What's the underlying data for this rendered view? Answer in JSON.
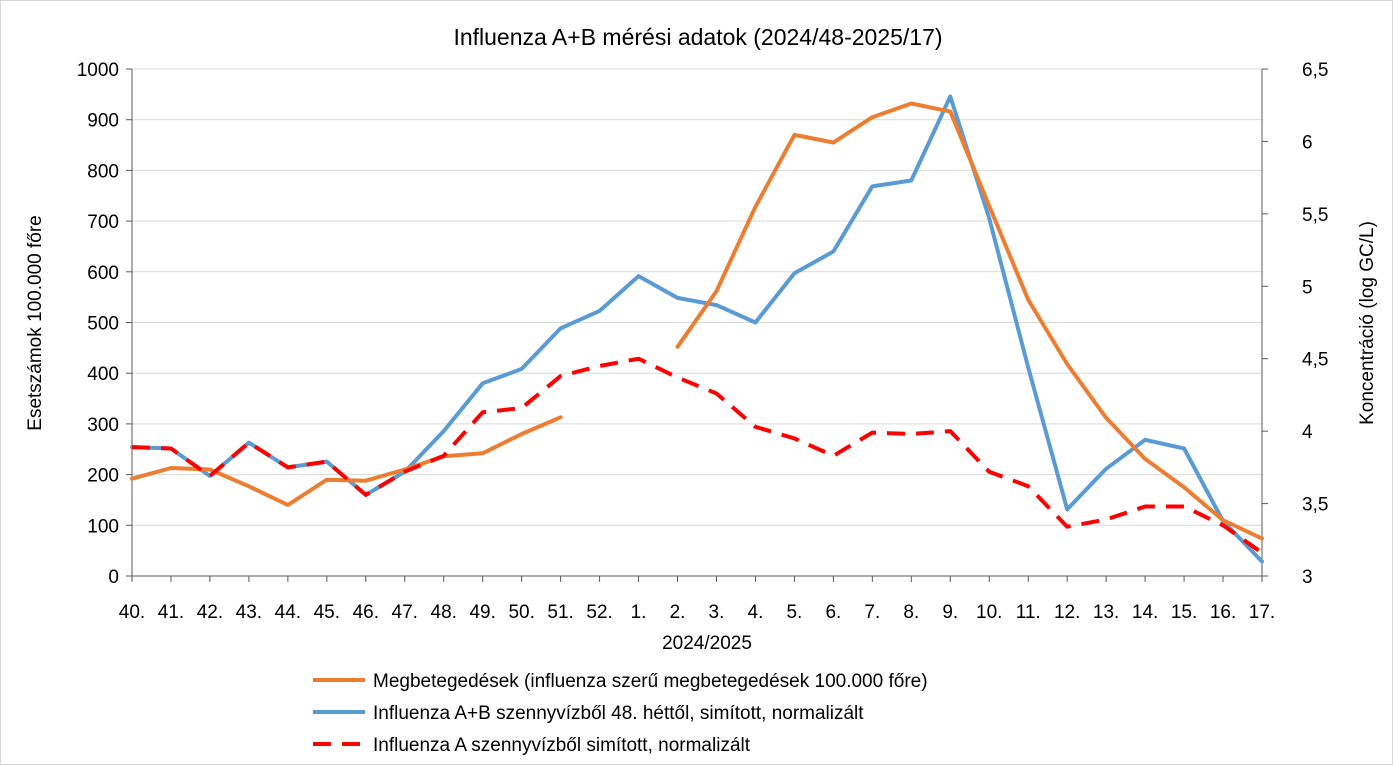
{
  "chart_data": {
    "type": "line",
    "title": "Influenza A+B mérési adatok (2024/48-2025/17)",
    "xlabel": "2024/2025",
    "ylabel_left": "Esetszámok 100.000 főre",
    "ylabel_right": "Koncentráció (log GC/L)",
    "categories": [
      "40.",
      "41.",
      "42.",
      "43.",
      "44.",
      "45.",
      "46.",
      "47.",
      "48.",
      "49.",
      "50.",
      "51.",
      "52.",
      "1.",
      "2.",
      "3.",
      "4.",
      "5.",
      "6.",
      "7.",
      "8.",
      "9.",
      "10.",
      "11.",
      "12.",
      "13.",
      "14.",
      "15.",
      "16.",
      "17."
    ],
    "y_left": {
      "min": 0,
      "max": 1000,
      "step": 100,
      "ticks": [
        "0",
        "100",
        "200",
        "300",
        "400",
        "500",
        "600",
        "700",
        "800",
        "900",
        "1000"
      ]
    },
    "y_right": {
      "min": 3,
      "max": 6.5,
      "step": 0.5,
      "ticks": [
        "3",
        "3,5",
        "4",
        "4,5",
        "5",
        "5,5",
        "6",
        "6,5"
      ]
    },
    "grid": "horizontal",
    "legend_position": "bottom",
    "series": [
      {
        "name": "Megbetegedések (influenza szerű megbetegedések 100.000 főre)",
        "axis": "left",
        "color": "#ED7D31",
        "style": "solid",
        "values": [
          192,
          213,
          210,
          177,
          140,
          190,
          188,
          210,
          236,
          242,
          280,
          313,
          null,
          null,
          452,
          562,
          728,
          870,
          855,
          905,
          932,
          916,
          730,
          545,
          418,
          312,
          231,
          175,
          110,
          74
        ]
      },
      {
        "name": "Influenza A+B szennyvízből 48. héttől, simított, normalizált",
        "axis": "right",
        "color": "#5B9BD5",
        "style": "solid",
        "values": [
          3.89,
          3.88,
          3.69,
          3.92,
          3.75,
          3.79,
          3.56,
          3.72,
          4.0,
          4.33,
          4.43,
          4.71,
          4.83,
          5.07,
          4.92,
          4.87,
          4.75,
          5.09,
          5.24,
          5.69,
          5.73,
          6.31,
          5.47,
          4.44,
          3.46,
          3.74,
          3.94,
          3.88,
          3.38,
          3.1
        ]
      },
      {
        "name": "Influenza A szennyvízből simított, normalizált",
        "axis": "right",
        "color": "#FF0000",
        "style": "dashed",
        "values": [
          3.89,
          3.88,
          3.69,
          3.92,
          3.75,
          3.79,
          3.56,
          3.72,
          3.83,
          4.13,
          4.16,
          4.38,
          4.45,
          4.5,
          4.37,
          4.26,
          4.03,
          3.95,
          3.83,
          3.99,
          3.98,
          4.0,
          3.72,
          3.62,
          3.34,
          3.39,
          3.48,
          3.48,
          3.35,
          3.16
        ]
      }
    ]
  }
}
